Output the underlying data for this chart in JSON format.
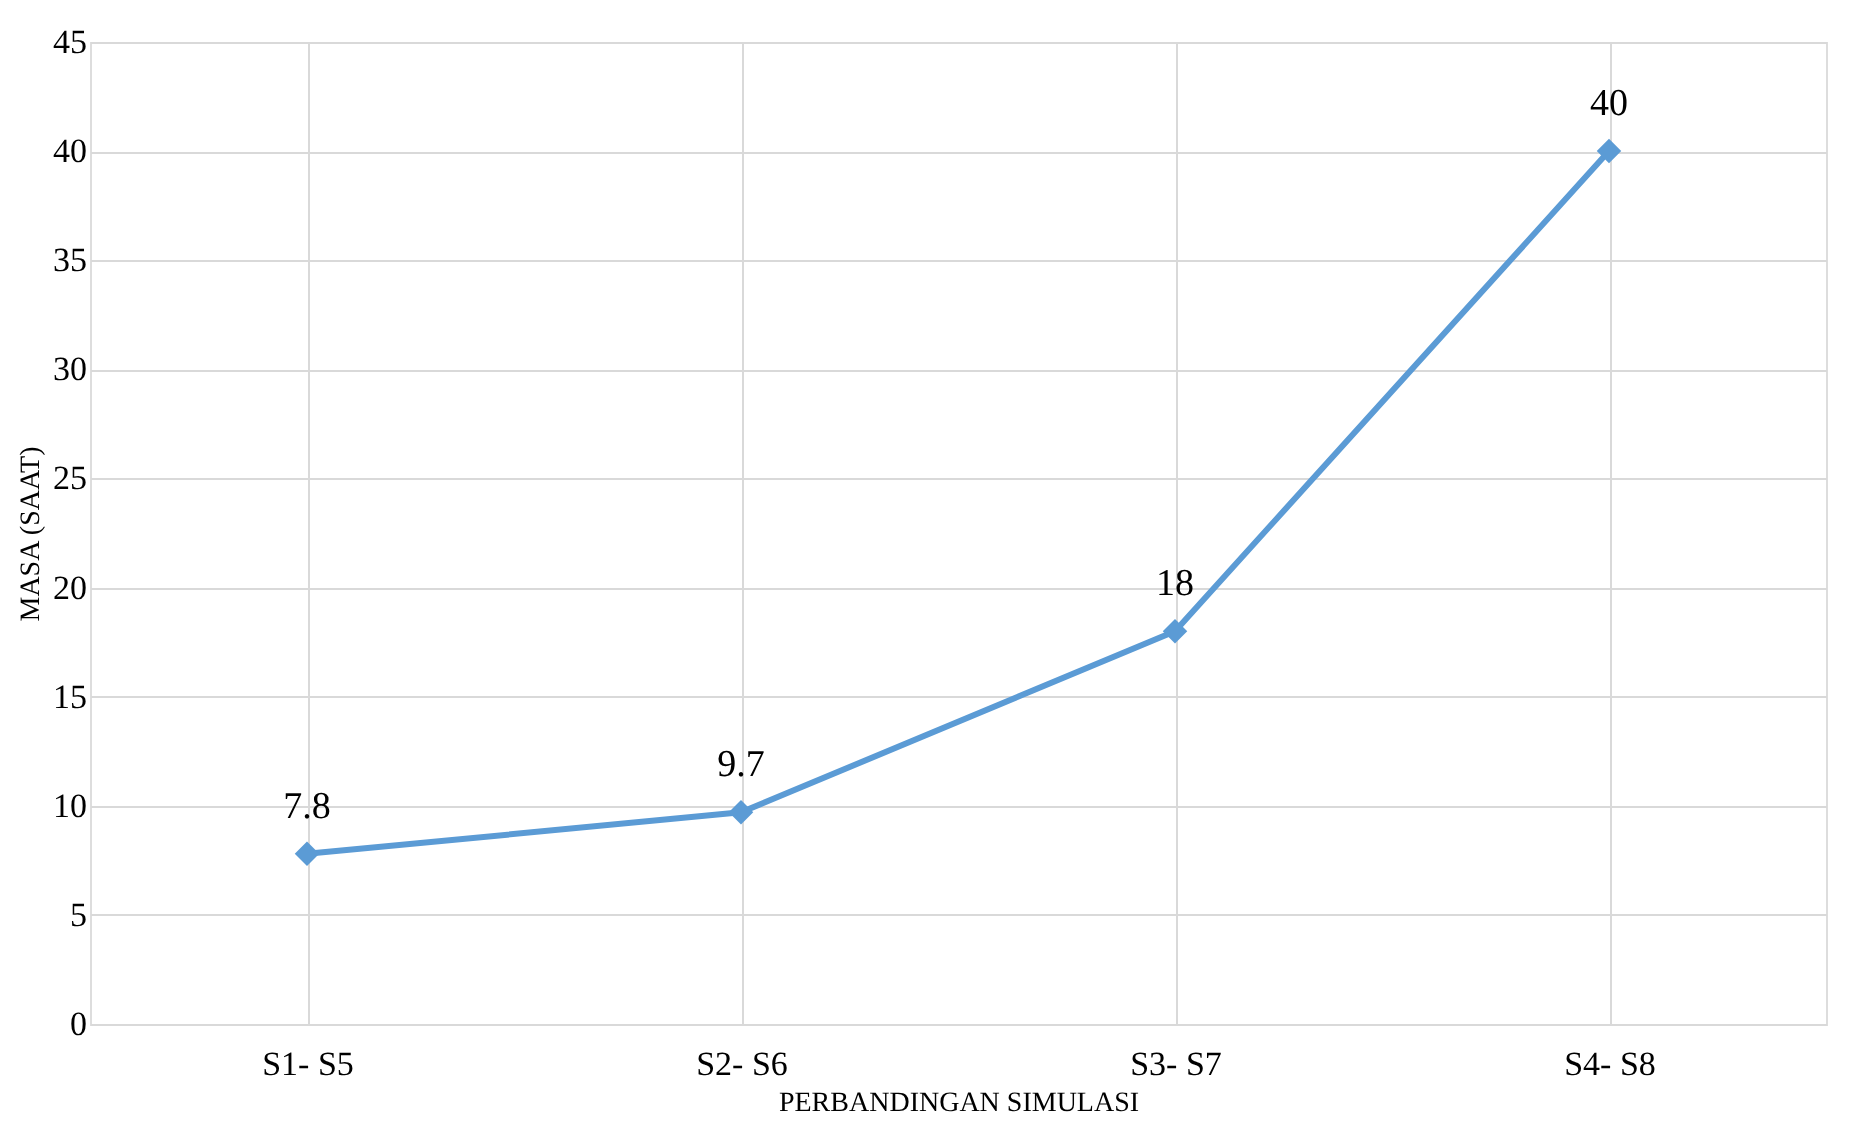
{
  "chart_data": {
    "type": "line",
    "xlabel": "PERBANDINGAN SIMULASI",
    "ylabel": "MASA (SAAT)",
    "categories": [
      "S1- S5",
      "S2- S6",
      "S3- S7",
      "S4- S8"
    ],
    "series": [
      {
        "color": "#5b9bd5",
        "values": [
          7.8,
          9.7,
          18,
          40
        ]
      }
    ],
    "ylim": [
      0,
      45
    ],
    "yticks": [
      0,
      5,
      10,
      15,
      20,
      25,
      30,
      35,
      40,
      45
    ],
    "grid": true,
    "marker": "diamond",
    "line_style": "solid",
    "data_labels": true
  }
}
